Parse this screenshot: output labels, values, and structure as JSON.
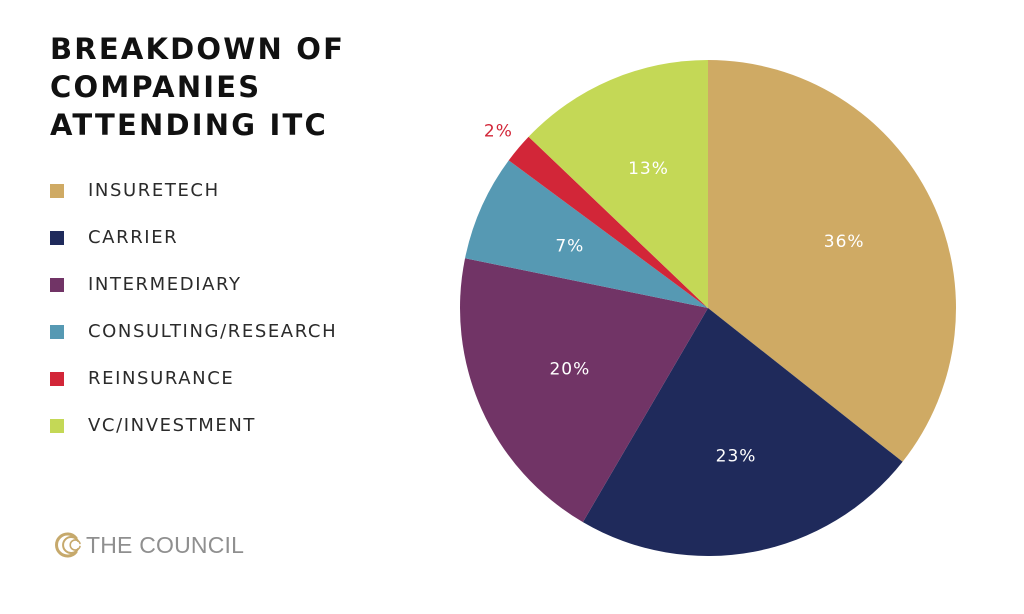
{
  "chart_data": {
    "type": "pie",
    "title": "BREAKDOWN OF COMPANIES ATTENDING ITC",
    "categories": [
      "INSURETECH",
      "CARRIER",
      "INTERMEDIARY",
      "CONSULTING/RESEARCH",
      "REINSURANCE",
      "VC/INVESTMENT"
    ],
    "values": [
      36,
      23,
      20,
      7,
      2,
      13
    ],
    "value_labels": [
      "36%",
      "23%",
      "20%",
      "7%",
      "2%",
      "13%"
    ],
    "colors": [
      "#cfaa64",
      "#1f2a5b",
      "#713466",
      "#5699b3",
      "#d22638",
      "#c4d856"
    ],
    "label_colors": [
      "#ffffff",
      "#ffffff",
      "#ffffff",
      "#ffffff",
      "#d22638",
      "#ffffff"
    ],
    "start_angle_deg": 0,
    "direction": "clockwise",
    "legend_position": "left"
  },
  "logo": {
    "text": "THE COUNCIL",
    "icon": "council-logo-icon",
    "color": "#c6a96c"
  }
}
